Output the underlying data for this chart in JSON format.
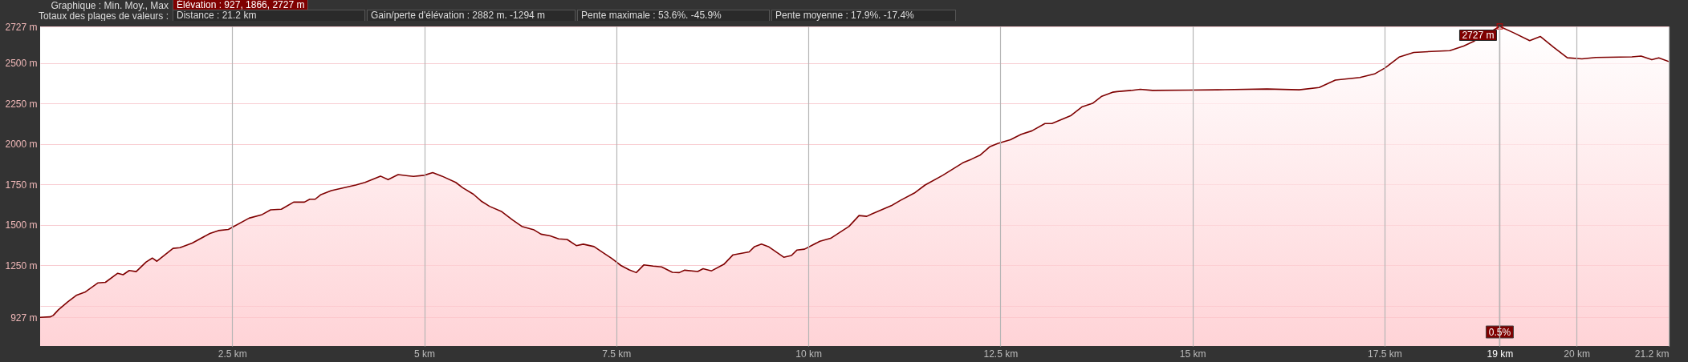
{
  "chart_data": {
    "type": "area",
    "title": "Graphique : Min. Moy., Max",
    "annotations": [
      "Élévation : 927, 1866, 2727 m",
      "Totaux des plages de valeurs :",
      "Distance : 21.2 km",
      "Gain/perte d'élévation : 2882 m. -1294 m",
      "Pente maximale : 53.6%. -45.9%",
      "Pente moyenne : 17.9%. -17.4%",
      {
        "text": "2727 m",
        "x": 19,
        "y": 2727
      },
      {
        "text": "0.5%",
        "x": 19
      }
    ],
    "x": [
      0,
      0.13,
      0.17,
      0.24,
      0.36,
      0.47,
      0.59,
      0.75,
      0.85,
      1.01,
      1.08,
      1.16,
      1.25,
      1.38,
      1.46,
      1.52,
      1.73,
      1.82,
      1.98,
      2.21,
      2.32,
      2.45,
      2.72,
      2.89,
      3.0,
      3.14,
      3.3,
      3.44,
      3.51,
      3.58,
      3.65,
      3.79,
      4.11,
      4.23,
      4.43,
      4.53,
      4.66,
      4.86,
      5.0,
      5.11,
      5.23,
      5.41,
      5.5,
      5.64,
      5.74,
      5.85,
      6.01,
      6.15,
      6.27,
      6.43,
      6.52,
      6.64,
      6.75,
      6.86,
      6.98,
      7.07,
      7.21,
      7.33,
      7.44,
      7.56,
      7.67,
      7.76,
      7.86,
      7.98,
      8.09,
      8.23,
      8.32,
      8.39,
      8.56,
      8.63,
      8.74,
      8.9,
      9.02,
      9.23,
      9.3,
      9.39,
      9.48,
      9.68,
      9.78,
      9.85,
      9.95,
      10.15,
      10.29,
      10.41,
      10.53,
      10.66,
      10.76,
      10.83,
      11.08,
      11.2,
      11.38,
      11.52,
      11.75,
      12.01,
      12.12,
      12.24,
      12.36,
      12.47,
      12.63,
      12.77,
      12.91,
      13.08,
      13.17,
      13.42,
      13.56,
      13.7,
      13.82,
      13.96,
      14.02,
      14.2,
      14.32,
      14.48,
      14.95,
      15.32,
      15.97,
      16.39,
      16.65,
      16.86,
      17.18,
      17.37,
      17.51,
      17.69,
      17.88,
      18.11,
      18.35,
      18.53,
      18.67,
      19.0,
      19.18,
      19.39,
      19.53,
      19.7,
      19.88,
      20.07,
      20.25,
      20.72,
      20.84,
      20.98,
      21.07,
      21.2
    ],
    "series": [
      {
        "color": "#7f0000",
        "values": [
          927,
          930,
          939,
          975,
          1023,
          1063,
          1085,
          1140,
          1144,
          1200,
          1191,
          1217,
          1210,
          1270,
          1294,
          1274,
          1354,
          1358,
          1387,
          1446,
          1464,
          1471,
          1541,
          1563,
          1592,
          1596,
          1640,
          1640,
          1658,
          1658,
          1685,
          1711,
          1746,
          1762,
          1801,
          1779,
          1810,
          1799,
          1806,
          1823,
          1801,
          1762,
          1729,
          1689,
          1647,
          1614,
          1581,
          1530,
          1490,
          1468,
          1442,
          1431,
          1413,
          1409,
          1371,
          1380,
          1365,
          1327,
          1292,
          1248,
          1221,
          1204,
          1252,
          1244,
          1239,
          1206,
          1204,
          1219,
          1211,
          1228,
          1215,
          1255,
          1314,
          1332,
          1365,
          1380,
          1365,
          1299,
          1310,
          1343,
          1349,
          1398,
          1416,
          1453,
          1490,
          1557,
          1552,
          1568,
          1618,
          1651,
          1696,
          1746,
          1806,
          1883,
          1905,
          1932,
          1982,
          2004,
          2026,
          2059,
          2081,
          2126,
          2126,
          2176,
          2229,
          2251,
          2295,
          2320,
          2324,
          2331,
          2338,
          2331,
          2333,
          2335,
          2340,
          2335,
          2349,
          2395,
          2411,
          2433,
          2471,
          2537,
          2566,
          2572,
          2577,
          2606,
          2637,
          2727,
          2688,
          2639,
          2665,
          2599,
          2533,
          2526,
          2535,
          2539,
          2544,
          2521,
          2533,
          2510
        ]
      }
    ],
    "xlim": [
      0,
      21.2
    ],
    "xticks": [
      {
        "value": 2.5,
        "label": "2.5 km"
      },
      {
        "value": 5,
        "label": "5 km"
      },
      {
        "value": 7.5,
        "label": "7.5 km"
      },
      {
        "value": 10,
        "label": "10 km"
      },
      {
        "value": 12.5,
        "label": "12.5 km"
      },
      {
        "value": 15,
        "label": "15 km"
      },
      {
        "value": 17.5,
        "label": "17.5 km"
      },
      {
        "value": 19,
        "label": "19 km"
      },
      {
        "value": 20,
        "label": "20 km"
      },
      {
        "value": 21.2,
        "label": "21.2 km"
      }
    ],
    "ylim": [
      750,
      2727
    ],
    "yticks": [
      {
        "value": 927,
        "label": "927 m"
      },
      {
        "value": 1000,
        "label": null
      },
      {
        "value": 1250,
        "label": "1250 m"
      },
      {
        "value": 1500,
        "label": "1500 m"
      },
      {
        "value": 1750,
        "label": "1750 m"
      },
      {
        "value": 2000,
        "label": "2000 m"
      },
      {
        "value": 2250,
        "label": "2250 m"
      },
      {
        "value": 2500,
        "label": "2500 m"
      },
      {
        "value": 2727,
        "label": "2727 m"
      }
    ],
    "ref_lines": [
      {
        "axis": "x",
        "value": 19,
        "color": "#777777"
      }
    ],
    "grid": true
  }
}
